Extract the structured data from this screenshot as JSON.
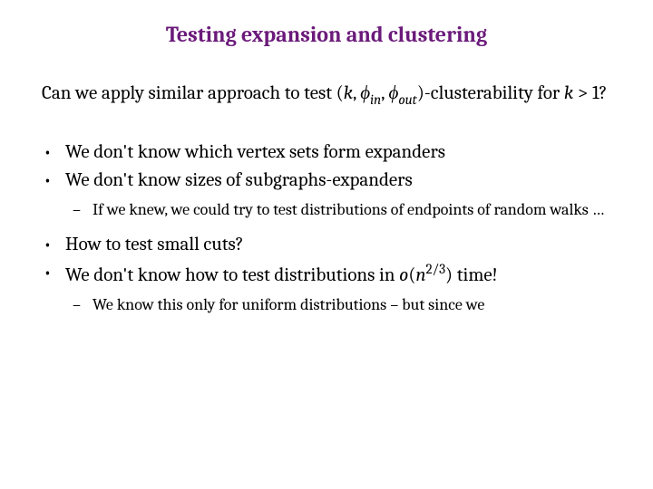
{
  "title_color": "#6b1a7a",
  "body_color": "#000000",
  "background": "#ffffff",
  "title": "Testing expansion and clustering",
  "intro_prefix": "Can we apply similar approach to test ",
  "intro_paren_open": "(",
  "intro_k": "k",
  "intro_comma1": ", ",
  "intro_phi_in": "ϕ",
  "intro_phi_in_sub": "in",
  "intro_comma2": ", ",
  "intro_phi_out": "ϕ",
  "intro_phi_out_sub": "out",
  "intro_paren_close": ")",
  "intro_suffix": "-clusterability for ",
  "intro_k2": "k",
  "intro_gt": " > 1?",
  "bullet1": "We don't know which vertex sets form expanders",
  "bullet2": "We don't know sizes of subgraphs-expanders",
  "sub2a": "If we knew, we could try to test distributions of endpoints of random walks …",
  "bullet3": "How to test small cuts?",
  "bullet4_prefix": "We don't know how to test distributions in ",
  "bullet4_o": "o",
  "bullet4_open": "(",
  "bullet4_n": "n",
  "bullet4_exp": "2/3",
  "bullet4_close": ")",
  "bullet4_suffix": " time!",
  "sub4a": "We know this only for uniform distributions – but since we"
}
